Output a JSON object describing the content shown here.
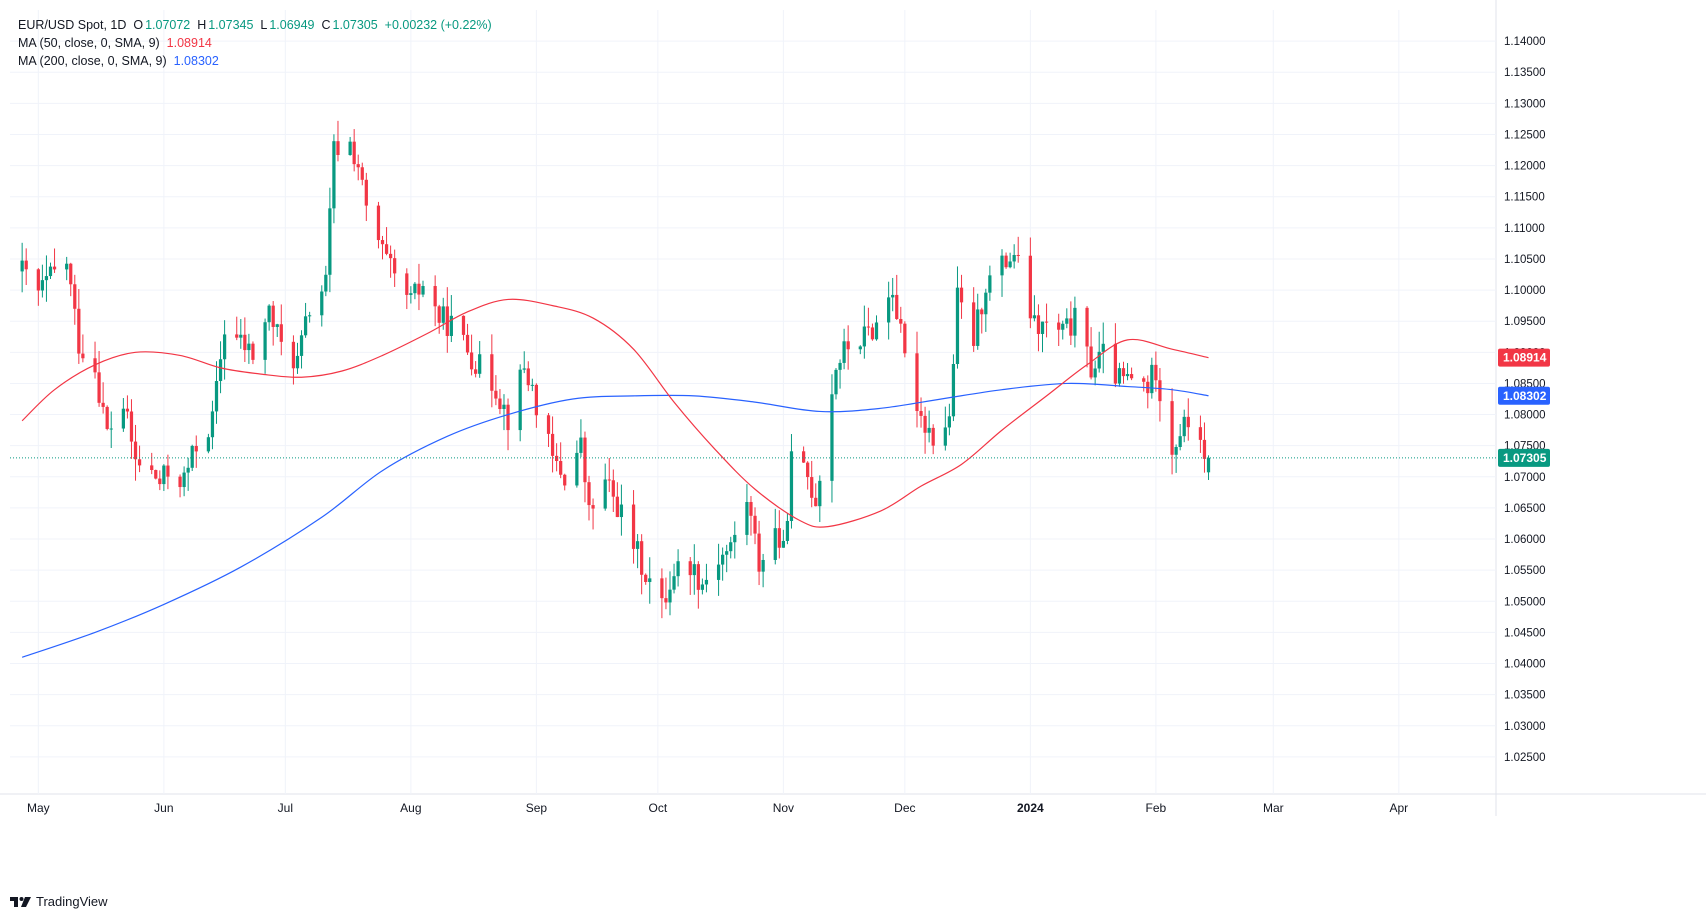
{
  "legend": {
    "symbol": "EUR/USD Spot, 1D",
    "open_label": "O",
    "open": "1.07072",
    "high_label": "H",
    "high": "1.07345",
    "low_label": "L",
    "low": "1.06949",
    "close_label": "C",
    "close": "1.07305",
    "change": "+0.00232 (+0.22%)",
    "ma50_label": "MA (50, close, 0, SMA, 9)",
    "ma50_value": "1.08914",
    "ma200_label": "MA (200, close, 0, SMA, 9)",
    "ma200_value": "1.08302"
  },
  "brand": {
    "name": "TradingView"
  },
  "colors": {
    "up": "#089981",
    "down": "#f23645",
    "ma50": "#f23645",
    "ma200": "#2962ff",
    "grid": "#f0f3fa",
    "axis_text": "#131722"
  },
  "chart_data": {
    "type": "candlestick",
    "title": "EUR/USD Spot, 1D",
    "y_range": [
      1.02,
      1.145
    ],
    "y_ticks": [
      "1.14000",
      "1.13500",
      "1.13000",
      "1.12500",
      "1.12000",
      "1.11500",
      "1.11000",
      "1.10500",
      "1.10000",
      "1.09500",
      "1.09000",
      "1.08500",
      "1.08000",
      "1.07500",
      "1.07000",
      "1.06500",
      "1.06000",
      "1.05500",
      "1.05000",
      "1.04500",
      "1.04000",
      "1.03500",
      "1.03000",
      "1.02500"
    ],
    "x_labels": [
      {
        "label": "May",
        "date": "2023-05-01"
      },
      {
        "label": "Jun",
        "date": "2023-06-01"
      },
      {
        "label": "Jul",
        "date": "2023-07-01"
      },
      {
        "label": "Aug",
        "date": "2023-08-01"
      },
      {
        "label": "Sep",
        "date": "2023-09-01"
      },
      {
        "label": "Oct",
        "date": "2023-10-01"
      },
      {
        "label": "Nov",
        "date": "2023-11-01"
      },
      {
        "label": "Dec",
        "date": "2023-12-01"
      },
      {
        "label": "2024",
        "date": "2024-01-01",
        "bold": true
      },
      {
        "label": "Feb",
        "date": "2024-02-01"
      },
      {
        "label": "Mar",
        "date": "2024-03-01"
      },
      {
        "label": "Apr",
        "date": "2024-04-01"
      }
    ],
    "last_price": 1.07305,
    "last_price_label": "1.07305",
    "ma50_label": "1.08914",
    "ma200_label": "1.08302",
    "close_path": [
      [
        "2023-04-27",
        1.103
      ],
      [
        "2023-05-01",
        1.0995
      ],
      [
        "2023-05-04",
        1.102
      ],
      [
        "2023-05-08",
        1.1045
      ],
      [
        "2023-05-11",
        1.0915
      ],
      [
        "2023-05-15",
        1.0875
      ],
      [
        "2023-05-18",
        1.077
      ],
      [
        "2023-05-22",
        1.0815
      ],
      [
        "2023-05-25",
        1.0725
      ],
      [
        "2023-05-29",
        1.0705
      ],
      [
        "2023-05-31",
        1.069
      ],
      [
        "2023-06-02",
        1.0705
      ],
      [
        "2023-06-06",
        1.0695
      ],
      [
        "2023-06-09",
        1.075
      ],
      [
        "2023-06-13",
        1.079
      ],
      [
        "2023-06-16",
        1.094
      ],
      [
        "2023-06-20",
        1.0915
      ],
      [
        "2023-06-23",
        1.0895
      ],
      [
        "2023-06-27",
        1.0965
      ],
      [
        "2023-06-30",
        1.091
      ],
      [
        "2023-07-04",
        1.0885
      ],
      [
        "2023-07-07",
        1.097
      ],
      [
        "2023-07-11",
        1.101
      ],
      [
        "2023-07-13",
        1.1225
      ],
      [
        "2023-07-17",
        1.1235
      ],
      [
        "2023-07-19",
        1.12
      ],
      [
        "2023-07-21",
        1.1125
      ],
      [
        "2023-07-25",
        1.106
      ],
      [
        "2023-07-28",
        1.1015
      ],
      [
        "2023-08-01",
        1.098
      ],
      [
        "2023-08-04",
        1.101
      ],
      [
        "2023-08-08",
        1.0955
      ],
      [
        "2023-08-11",
        1.0945
      ],
      [
        "2023-08-15",
        1.0905
      ],
      [
        "2023-08-18",
        1.0875
      ],
      [
        "2023-08-22",
        1.0845
      ],
      [
        "2023-08-25",
        1.0795
      ],
      [
        "2023-08-29",
        1.0875
      ],
      [
        "2023-08-31",
        1.084
      ],
      [
        "2023-09-05",
        1.0725
      ],
      [
        "2023-09-08",
        1.07
      ],
      [
        "2023-09-12",
        1.075
      ],
      [
        "2023-09-14",
        1.064
      ],
      [
        "2023-09-18",
        1.069
      ],
      [
        "2023-09-21",
        1.0655
      ],
      [
        "2023-09-25",
        1.059
      ],
      [
        "2023-09-28",
        1.0545
      ],
      [
        "2023-10-02",
        1.049
      ],
      [
        "2023-10-05",
        1.055
      ],
      [
        "2023-10-09",
        1.056
      ],
      [
        "2023-10-12",
        1.053
      ],
      [
        "2023-10-16",
        1.057
      ],
      [
        "2023-10-19",
        1.0585
      ],
      [
        "2023-10-23",
        1.0665
      ],
      [
        "2023-10-26",
        1.056
      ],
      [
        "2023-10-30",
        1.0615
      ],
      [
        "2023-11-01",
        1.0575
      ],
      [
        "2023-11-03",
        1.0725
      ],
      [
        "2023-11-07",
        1.07
      ],
      [
        "2023-11-09",
        1.0665
      ],
      [
        "2023-11-14",
        1.088
      ],
      [
        "2023-11-17",
        1.091
      ],
      [
        "2023-11-21",
        1.0925
      ],
      [
        "2023-11-24",
        1.0945
      ],
      [
        "2023-11-28",
        1.1005
      ],
      [
        "2023-12-01",
        1.0885
      ],
      [
        "2023-12-05",
        1.08
      ],
      [
        "2023-12-08",
        1.0765
      ],
      [
        "2023-12-12",
        1.079
      ],
      [
        "2023-12-14",
        1.0985
      ],
      [
        "2023-12-18",
        1.092
      ],
      [
        "2023-12-21",
        1.101
      ],
      [
        "2023-12-26",
        1.1045
      ],
      [
        "2023-12-28",
        1.106
      ],
      [
        "2024-01-02",
        1.094
      ],
      [
        "2024-01-05",
        1.094
      ],
      [
        "2024-01-09",
        1.093
      ],
      [
        "2024-01-12",
        1.095
      ],
      [
        "2024-01-16",
        1.0875
      ],
      [
        "2024-01-19",
        1.0895
      ],
      [
        "2024-01-23",
        1.0855
      ],
      [
        "2024-01-26",
        1.0855
      ],
      [
        "2024-01-30",
        1.0845
      ],
      [
        "2024-02-01",
        1.0875
      ],
      [
        "2024-02-05",
        1.0745
      ],
      [
        "2024-02-07",
        1.0775
      ],
      [
        "2024-02-09",
        1.0785
      ],
      [
        "2024-02-12",
        1.077
      ],
      [
        "2024-02-13",
        1.071
      ],
      [
        "2024-02-14",
        1.07305
      ]
    ],
    "ma50": [
      [
        "2023-04-27",
        1.079
      ],
      [
        "2023-05-05",
        1.084
      ],
      [
        "2023-05-15",
        1.088
      ],
      [
        "2023-05-25",
        1.09
      ],
      [
        "2023-06-05",
        1.0895
      ],
      [
        "2023-06-15",
        1.0875
      ],
      [
        "2023-06-25",
        1.0865
      ],
      [
        "2023-07-05",
        1.086
      ],
      [
        "2023-07-15",
        1.087
      ],
      [
        "2023-07-25",
        1.0895
      ],
      [
        "2023-08-05",
        1.093
      ],
      [
        "2023-08-15",
        1.0965
      ],
      [
        "2023-08-25",
        1.0985
      ],
      [
        "2023-09-05",
        1.0975
      ],
      [
        "2023-09-15",
        1.0955
      ],
      [
        "2023-09-25",
        1.0905
      ],
      [
        "2023-10-05",
        1.082
      ],
      [
        "2023-10-15",
        1.0745
      ],
      [
        "2023-10-25",
        1.068
      ],
      [
        "2023-11-05",
        1.063
      ],
      [
        "2023-11-12",
        1.062
      ],
      [
        "2023-11-25",
        1.0645
      ],
      [
        "2023-12-05",
        1.0685
      ],
      [
        "2023-12-15",
        1.072
      ],
      [
        "2023-12-25",
        1.0775
      ],
      [
        "2024-01-05",
        1.083
      ],
      [
        "2024-01-15",
        1.088
      ],
      [
        "2024-01-25",
        1.092
      ],
      [
        "2024-02-05",
        1.0905
      ],
      [
        "2024-02-14",
        1.08914
      ]
    ],
    "ma200": [
      [
        "2023-04-27",
        1.041
      ],
      [
        "2023-05-15",
        1.045
      ],
      [
        "2023-06-01",
        1.0495
      ],
      [
        "2023-06-20",
        1.0555
      ],
      [
        "2023-07-10",
        1.0635
      ],
      [
        "2023-07-25",
        1.071
      ],
      [
        "2023-08-10",
        1.0765
      ],
      [
        "2023-08-25",
        1.08
      ],
      [
        "2023-09-10",
        1.0825
      ],
      [
        "2023-09-25",
        1.083
      ],
      [
        "2023-10-10",
        1.083
      ],
      [
        "2023-10-25",
        1.082
      ],
      [
        "2023-11-10",
        1.0805
      ],
      [
        "2023-11-25",
        1.081
      ],
      [
        "2023-12-10",
        1.0825
      ],
      [
        "2023-12-25",
        1.084
      ],
      [
        "2024-01-10",
        1.085
      ],
      [
        "2024-01-25",
        1.0845
      ],
      [
        "2024-02-05",
        1.084
      ],
      [
        "2024-02-14",
        1.08302
      ]
    ]
  }
}
